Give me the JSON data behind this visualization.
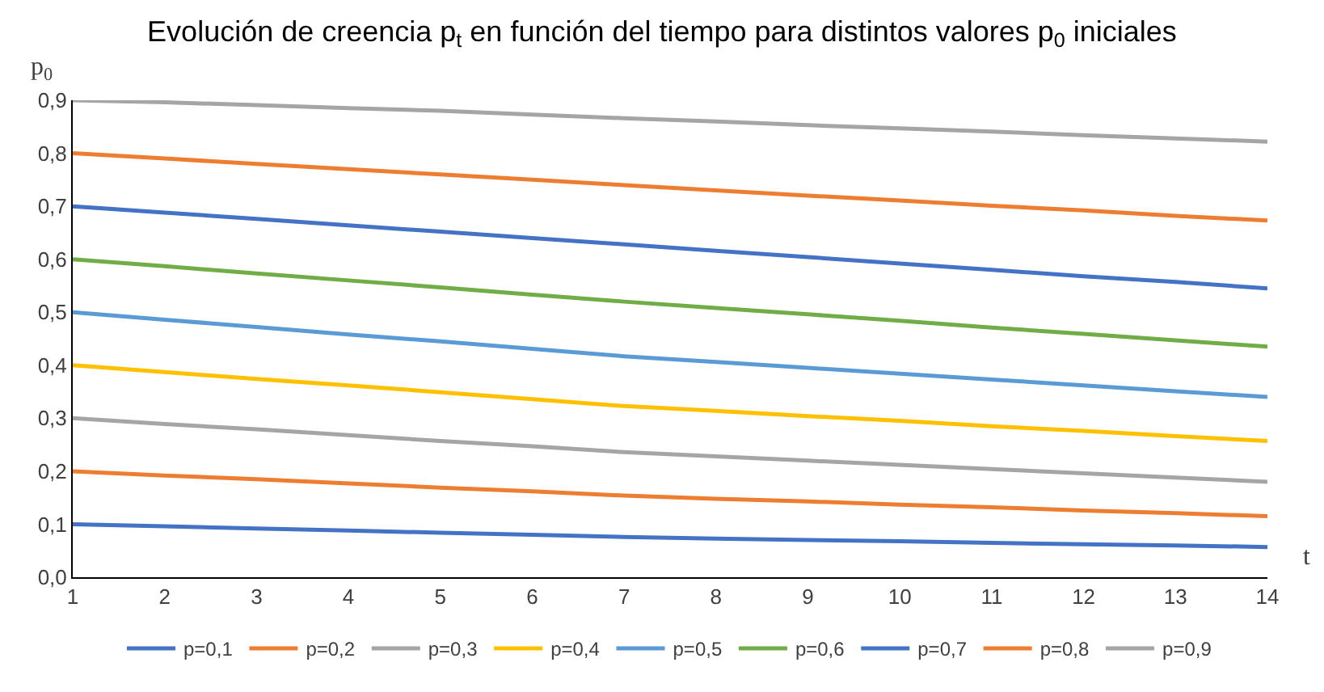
{
  "chart_data": {
    "type": "line",
    "title": "Evolución de creencia p$_{t}$ en función del tiempo para distintos valores p$_{0}$ iniciales",
    "xlabel": "t",
    "ylabel": "p$_{0}$",
    "x": [
      1,
      2,
      3,
      4,
      5,
      6,
      7,
      8,
      9,
      10,
      11,
      12,
      13,
      14
    ],
    "xlim": [
      1,
      14
    ],
    "xticks": [
      1,
      2,
      3,
      4,
      5,
      6,
      7,
      8,
      9,
      10,
      11,
      12,
      13,
      14
    ],
    "ylim": [
      0,
      0.9
    ],
    "yticks": [
      {
        "value": 0,
        "label": "0,0"
      },
      {
        "value": 0.1,
        "label": "0,1"
      },
      {
        "value": 0.2,
        "label": "0,2"
      },
      {
        "value": 0.3,
        "label": "0,3"
      },
      {
        "value": 0.4,
        "label": "0,4"
      },
      {
        "value": 0.5,
        "label": "0,5"
      },
      {
        "value": 0.6,
        "label": "0,6"
      },
      {
        "value": 0.7,
        "label": "0,7"
      },
      {
        "value": 0.8,
        "label": "0,8"
      },
      {
        "value": 0.9,
        "label": "0,9"
      }
    ],
    "grid": false,
    "legend": "bottom",
    "marker": "none",
    "line_style": "solid",
    "series": [
      {
        "name": "p=0,1",
        "color": "#4472c4",
        "values": [
          0.1,
          0.096,
          0.092,
          0.088,
          0.084,
          0.08,
          0.076,
          0.073,
          0.07,
          0.068,
          0.065,
          0.062,
          0.06,
          0.057
        ]
      },
      {
        "name": "p=0,2",
        "color": "#ed7d31",
        "values": [
          0.2,
          0.192,
          0.185,
          0.177,
          0.169,
          0.162,
          0.154,
          0.148,
          0.143,
          0.137,
          0.132,
          0.126,
          0.121,
          0.115
        ]
      },
      {
        "name": "p=0,3",
        "color": "#a5a5a5",
        "values": [
          0.3,
          0.289,
          0.279,
          0.268,
          0.257,
          0.247,
          0.236,
          0.228,
          0.22,
          0.212,
          0.204,
          0.196,
          0.188,
          0.18
        ]
      },
      {
        "name": "p=0,4",
        "color": "#ffc000",
        "values": [
          0.4,
          0.387,
          0.374,
          0.362,
          0.349,
          0.336,
          0.323,
          0.314,
          0.304,
          0.295,
          0.285,
          0.276,
          0.266,
          0.257
        ]
      },
      {
        "name": "p=0,5",
        "color": "#5b9bd5",
        "values": [
          0.5,
          0.486,
          0.472,
          0.458,
          0.445,
          0.431,
          0.417,
          0.406,
          0.395,
          0.384,
          0.373,
          0.362,
          0.351,
          0.34
        ]
      },
      {
        "name": "p=0,6",
        "color": "#70ad47",
        "values": [
          0.6,
          0.587,
          0.573,
          0.56,
          0.547,
          0.533,
          0.52,
          0.508,
          0.496,
          0.484,
          0.471,
          0.459,
          0.447,
          0.435
        ]
      },
      {
        "name": "p=0,7",
        "color": "#4472c4",
        "values": [
          0.7,
          0.688,
          0.676,
          0.664,
          0.652,
          0.64,
          0.628,
          0.616,
          0.604,
          0.592,
          0.58,
          0.568,
          0.557,
          0.545
        ]
      },
      {
        "name": "p=0,8",
        "color": "#ed7d31",
        "values": [
          0.8,
          0.79,
          0.78,
          0.77,
          0.76,
          0.75,
          0.74,
          0.73,
          0.72,
          0.711,
          0.701,
          0.692,
          0.682,
          0.673
        ]
      },
      {
        "name": "p=0,9",
        "color": "#a5a5a5",
        "values": [
          0.9,
          0.896,
          0.891,
          0.885,
          0.88,
          0.873,
          0.866,
          0.86,
          0.853,
          0.847,
          0.841,
          0.834,
          0.828,
          0.822
        ]
      }
    ]
  }
}
